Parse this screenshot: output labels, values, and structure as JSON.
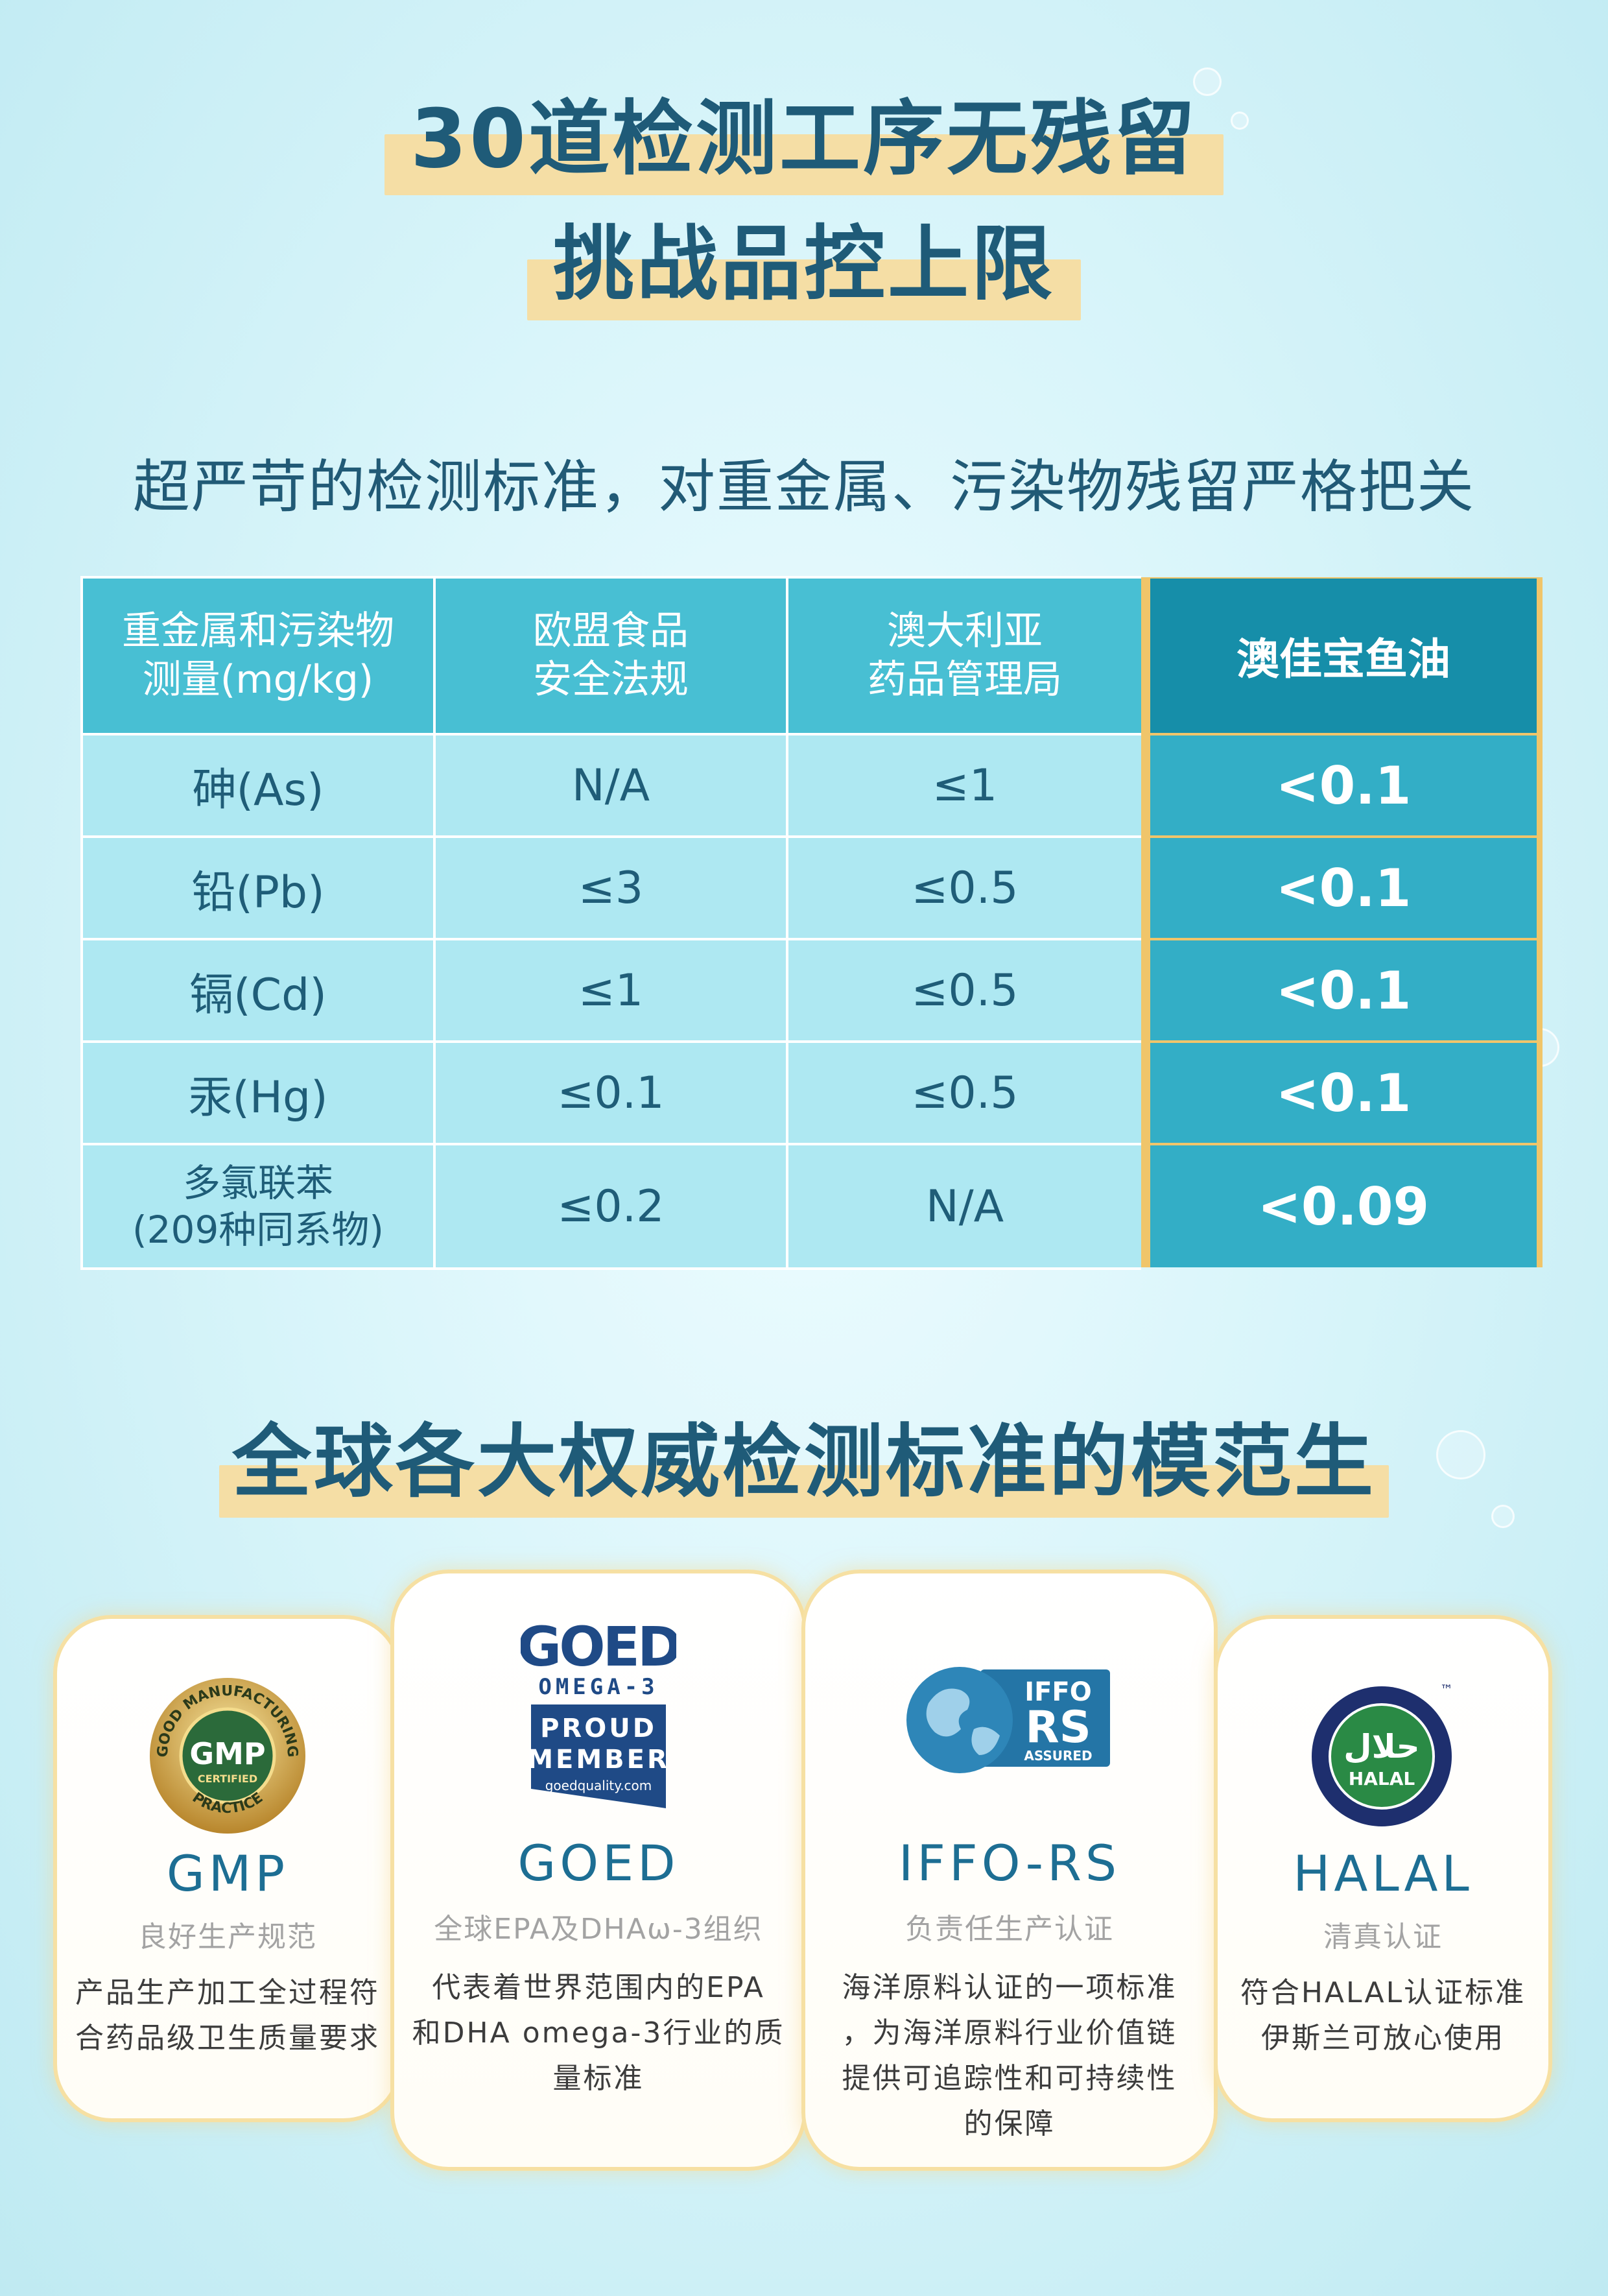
{
  "heading": {
    "line1": "30道检测工序无残留",
    "line2": "挑战品控上限",
    "subtitle": "超严苛的检测标准，对重金属、污染物残留严格把关"
  },
  "table": {
    "headers": [
      "重金属和污染物\n测量(mg/kg)",
      "欧盟食品\n安全法规",
      "澳大利亚\n药品管理局",
      "澳佳宝鱼油"
    ],
    "rows": [
      [
        "砷(As)",
        "N/A",
        "≤1",
        "<0.1"
      ],
      [
        "铅(Pb)",
        "≤3",
        "≤0.5",
        "<0.1"
      ],
      [
        "镉(Cd)",
        "≤1",
        "≤0.5",
        "<0.1"
      ],
      [
        "汞(Hg)",
        "≤0.1",
        "≤0.5",
        "<0.1"
      ],
      [
        "多氯联苯\n(209种同系物)",
        "≤0.2",
        "N/A",
        "<0.09"
      ]
    ]
  },
  "section2": {
    "title": "全球各大权威检测标准的模范生"
  },
  "cards": [
    {
      "title": "GMP",
      "subtitle": "良好生产规范",
      "desc": [
        "产品生产加工全过程符",
        "合药品级卫生质量要求"
      ],
      "logo": {
        "icon": "gmp-seal-icon",
        "arc_top": "GOOD MANUFACTURING",
        "center": "GMP",
        "small": "CERTIFIED",
        "arc_bottom": "PRACTICE"
      }
    },
    {
      "title": "GOED",
      "subtitle": "全球EPA及DHAω-3组织",
      "desc": [
        "代表着世界范围内的EPA",
        "和DHA omega-3行业的质",
        "量标准"
      ],
      "logo": {
        "icon": "goed-member-icon",
        "top": "GOED",
        "mid": "OMEGA-3",
        "l1": "PROUD",
        "l2": "MEMBER",
        "l3": "goedquality.com"
      }
    },
    {
      "title": "IFFO-RS",
      "subtitle": "负责任生产认证",
      "desc": [
        "海洋原料认证的一项标准",
        "，为海洋原料行业价值链",
        "提供可追踪性和可持续性",
        "的保障"
      ],
      "logo": {
        "icon": "iffo-globe-icon",
        "l1": "IFFO",
        "l2": "RS",
        "l3": "ASSURED"
      }
    },
    {
      "title": "HALAL",
      "subtitle": "清真认证",
      "desc": [
        "符合HALAL认证标准",
        "伊斯兰可放心使用"
      ],
      "logo": {
        "icon": "halal-seal-icon",
        "arabic": "حلال",
        "center": "HALAL",
        "tm": "™"
      }
    }
  ],
  "colors": {
    "title": "#1f5b78",
    "highlight_bar": "#f5dea5",
    "table_header": "#48bfd3",
    "table_body": "#aee8f2",
    "brand_col": "#33aec6",
    "brand_header": "#168ea9",
    "gold_frame": "#f0c56a"
  }
}
